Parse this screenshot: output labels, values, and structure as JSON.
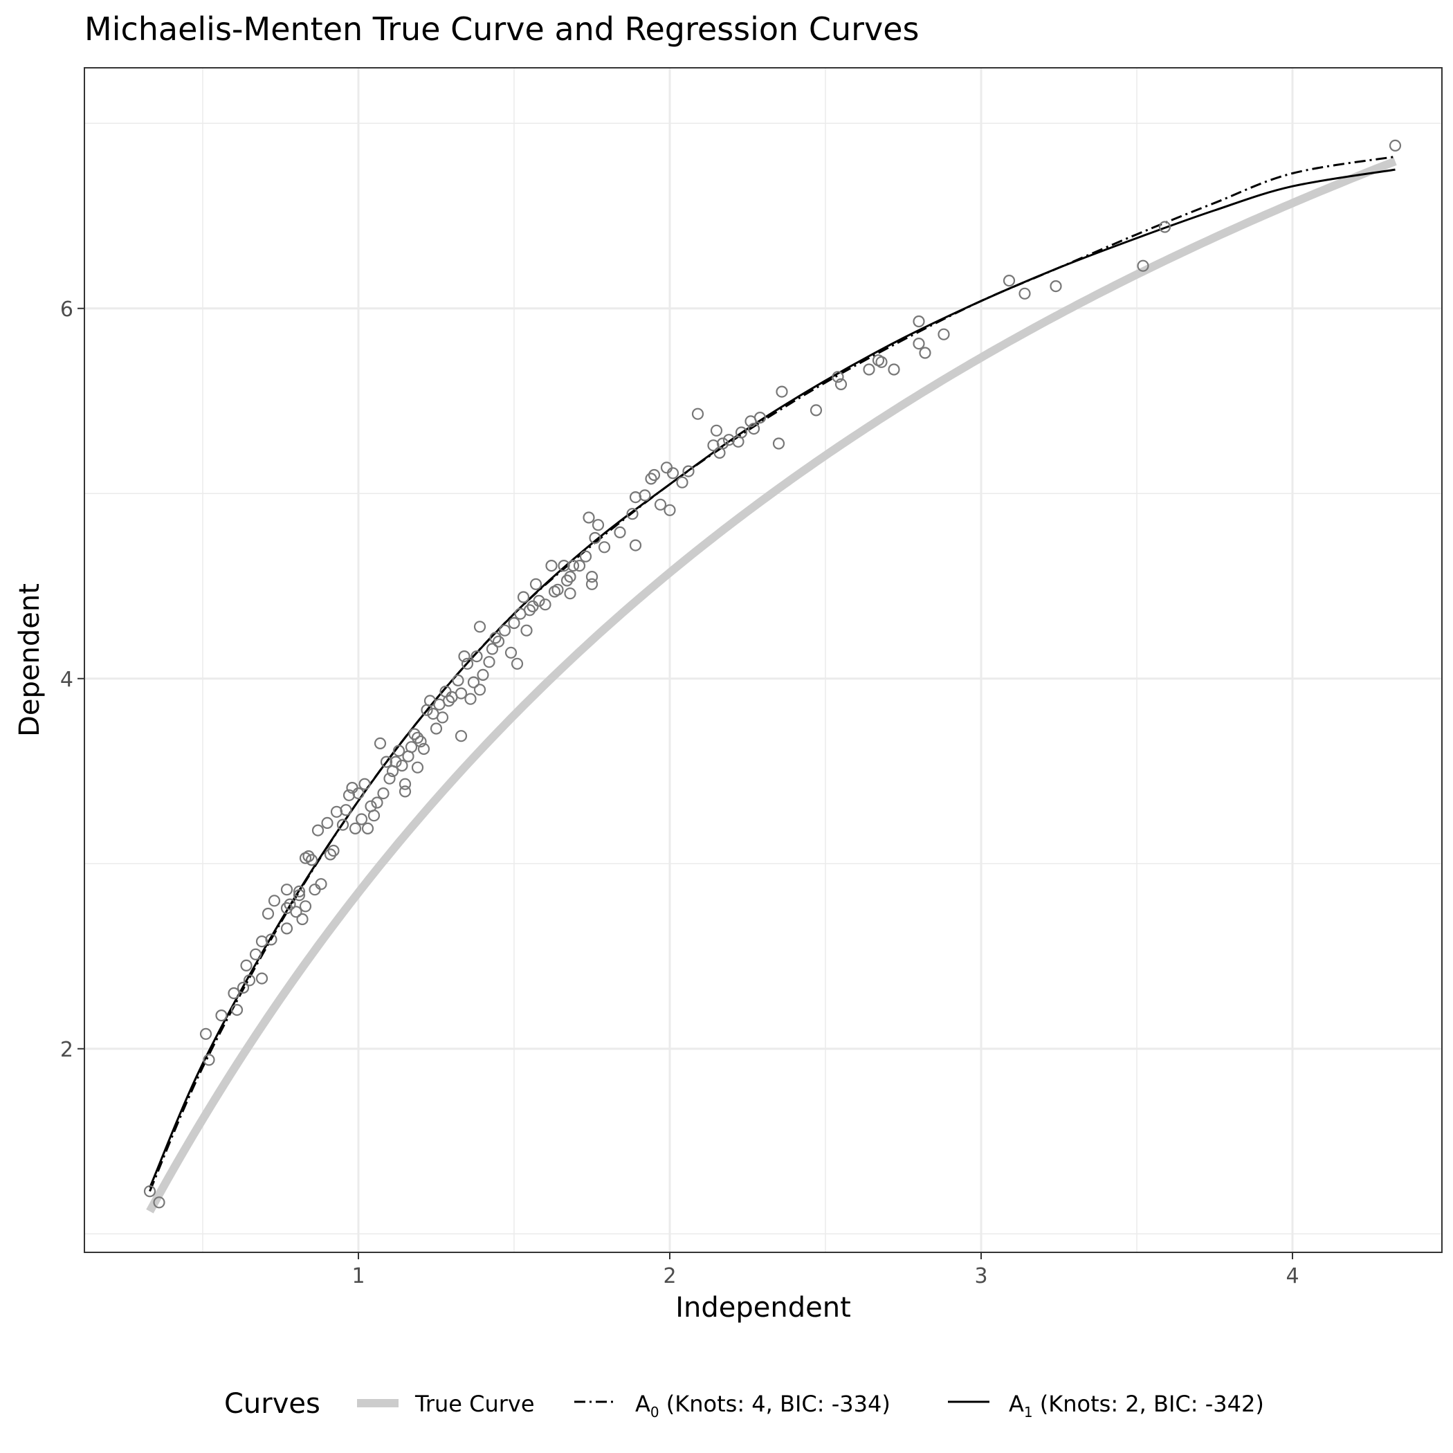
{
  "chart_data": {
    "type": "scatter",
    "title": "Michaelis-Menten True Curve and Regression Curves",
    "xlabel": "Independent",
    "ylabel": "Dependent",
    "xlim": [
      0.12,
      4.48
    ],
    "ylim": [
      0.9,
      7.3
    ],
    "x_ticks": [
      1,
      2,
      3,
      4
    ],
    "x_tick_labels": [
      "1",
      "2",
      "3",
      "4"
    ],
    "y_ticks": [
      2,
      4,
      6
    ],
    "y_tick_labels": [
      "2",
      "4",
      "6"
    ],
    "grid": true,
    "legend": {
      "position": "bottom",
      "title": "Curves",
      "entries": [
        {
          "label": "True Curve",
          "style": "thick-gray",
          "color": "#cccccc"
        },
        {
          "label_base": "A",
          "label_sub": "0",
          "label_rest": " (Knots: 4, BIC: -334)",
          "style": "dashdot",
          "color": "#000000"
        },
        {
          "label_base": "A",
          "label_sub": "1",
          "label_rest": " (Knots: 2, BIC: -342)",
          "style": "solid",
          "color": "#000000"
        }
      ]
    },
    "colors": {
      "points": "#777777",
      "true_curve": "#cccccc",
      "fit": "#000000",
      "grid": "#ebebeb",
      "panel_border": "#333333"
    },
    "true_curve": {
      "vmax": 11.66,
      "km": 3.1
    },
    "series": [
      {
        "name": "True Curve",
        "x": [
          0.33,
          0.5,
          0.75,
          1.0,
          1.25,
          1.5,
          1.75,
          2.0,
          2.25,
          2.5,
          2.75,
          3.0,
          3.25,
          3.5,
          3.75,
          4.0,
          4.33
        ],
        "y": [
          1.4,
          1.95,
          2.7,
          3.34,
          3.9,
          4.36,
          4.75,
          5.08,
          5.38,
          5.64,
          5.85,
          6.04,
          6.23,
          6.42,
          6.61,
          6.8,
          6.88
        ]
      },
      {
        "name": "A0 (Knots: 4, BIC: -334)",
        "x": [
          0.33,
          0.5,
          0.75,
          1.0,
          1.25,
          1.5,
          1.75,
          2.0,
          2.25,
          2.5,
          2.75,
          3.0,
          3.25,
          3.5,
          3.75,
          4.0,
          4.33
        ],
        "y": [
          1.23,
          1.9,
          2.68,
          3.34,
          3.89,
          4.35,
          4.72,
          5.05,
          5.34,
          5.6,
          5.83,
          6.04,
          6.22,
          6.4,
          6.57,
          6.73,
          6.82
        ]
      },
      {
        "name": "A1 (Knots: 2, BIC: -342)",
        "x": [
          0.33,
          0.5,
          0.75,
          1.0,
          1.25,
          1.5,
          1.75,
          2.0,
          2.25,
          2.5,
          2.75,
          3.0,
          3.25,
          3.5,
          3.75,
          4.0,
          4.33
        ],
        "y": [
          1.25,
          1.92,
          2.69,
          3.34,
          3.89,
          4.35,
          4.73,
          5.05,
          5.35,
          5.61,
          5.84,
          6.04,
          6.22,
          6.38,
          6.53,
          6.66,
          6.75
        ]
      }
    ],
    "points": [
      [
        0.33,
        1.23
      ],
      [
        0.36,
        1.17
      ],
      [
        0.51,
        2.08
      ],
      [
        0.52,
        1.94
      ],
      [
        0.56,
        2.18
      ],
      [
        0.6,
        2.3
      ],
      [
        0.61,
        2.21
      ],
      [
        0.63,
        2.33
      ],
      [
        0.64,
        2.45
      ],
      [
        0.65,
        2.37
      ],
      [
        0.67,
        2.51
      ],
      [
        0.69,
        2.38
      ],
      [
        0.69,
        2.58
      ],
      [
        0.71,
        2.73
      ],
      [
        0.72,
        2.59
      ],
      [
        0.73,
        2.8
      ],
      [
        0.77,
        2.65
      ],
      [
        0.77,
        2.86
      ],
      [
        0.77,
        2.76
      ],
      [
        0.78,
        2.78
      ],
      [
        0.8,
        2.74
      ],
      [
        0.81,
        2.85
      ],
      [
        0.81,
        2.83
      ],
      [
        0.82,
        2.7
      ],
      [
        0.83,
        2.77
      ],
      [
        0.83,
        3.03
      ],
      [
        0.84,
        3.04
      ],
      [
        0.85,
        3.02
      ],
      [
        0.86,
        2.86
      ],
      [
        0.87,
        3.18
      ],
      [
        0.88,
        2.89
      ],
      [
        0.9,
        3.22
      ],
      [
        0.91,
        3.05
      ],
      [
        0.92,
        3.07
      ],
      [
        0.93,
        3.28
      ],
      [
        0.95,
        3.21
      ],
      [
        0.96,
        3.29
      ],
      [
        0.97,
        3.37
      ],
      [
        0.98,
        3.41
      ],
      [
        0.99,
        3.19
      ],
      [
        1.0,
        3.38
      ],
      [
        1.01,
        3.24
      ],
      [
        1.02,
        3.43
      ],
      [
        1.03,
        3.19
      ],
      [
        1.04,
        3.31
      ],
      [
        1.05,
        3.26
      ],
      [
        1.06,
        3.33
      ],
      [
        1.07,
        3.65
      ],
      [
        1.08,
        3.38
      ],
      [
        1.09,
        3.55
      ],
      [
        1.1,
        3.46
      ],
      [
        1.11,
        3.5
      ],
      [
        1.12,
        3.55
      ],
      [
        1.13,
        3.61
      ],
      [
        1.14,
        3.53
      ],
      [
        1.15,
        3.39
      ],
      [
        1.15,
        3.43
      ],
      [
        1.16,
        3.58
      ],
      [
        1.17,
        3.63
      ],
      [
        1.18,
        3.7
      ],
      [
        1.19,
        3.52
      ],
      [
        1.19,
        3.68
      ],
      [
        1.2,
        3.66
      ],
      [
        1.21,
        3.62
      ],
      [
        1.22,
        3.83
      ],
      [
        1.23,
        3.88
      ],
      [
        1.24,
        3.81
      ],
      [
        1.25,
        3.73
      ],
      [
        1.26,
        3.86
      ],
      [
        1.27,
        3.79
      ],
      [
        1.28,
        3.93
      ],
      [
        1.29,
        3.88
      ],
      [
        1.3,
        3.9
      ],
      [
        1.32,
        3.99
      ],
      [
        1.33,
        3.92
      ],
      [
        1.33,
        3.69
      ],
      [
        1.34,
        4.12
      ],
      [
        1.35,
        4.08
      ],
      [
        1.36,
        3.89
      ],
      [
        1.37,
        3.98
      ],
      [
        1.38,
        4.12
      ],
      [
        1.39,
        4.28
      ],
      [
        1.39,
        3.94
      ],
      [
        1.4,
        4.02
      ],
      [
        1.42,
        4.09
      ],
      [
        1.43,
        4.16
      ],
      [
        1.44,
        4.22
      ],
      [
        1.45,
        4.2
      ],
      [
        1.47,
        4.26
      ],
      [
        1.49,
        4.14
      ],
      [
        1.5,
        4.3
      ],
      [
        1.51,
        4.08
      ],
      [
        1.52,
        4.35
      ],
      [
        1.53,
        4.44
      ],
      [
        1.54,
        4.26
      ],
      [
        1.55,
        4.37
      ],
      [
        1.56,
        4.39
      ],
      [
        1.57,
        4.51
      ],
      [
        1.58,
        4.42
      ],
      [
        1.6,
        4.4
      ],
      [
        1.62,
        4.61
      ],
      [
        1.63,
        4.47
      ],
      [
        1.64,
        4.48
      ],
      [
        1.66,
        4.61
      ],
      [
        1.67,
        4.53
      ],
      [
        1.68,
        4.55
      ],
      [
        1.68,
        4.46
      ],
      [
        1.69,
        4.61
      ],
      [
        1.71,
        4.61
      ],
      [
        1.73,
        4.66
      ],
      [
        1.74,
        4.87
      ],
      [
        1.75,
        4.51
      ],
      [
        1.75,
        4.55
      ],
      [
        1.76,
        4.76
      ],
      [
        1.77,
        4.83
      ],
      [
        1.79,
        4.71
      ],
      [
        1.84,
        4.79
      ],
      [
        1.88,
        4.89
      ],
      [
        1.89,
        4.98
      ],
      [
        1.89,
        4.72
      ],
      [
        1.92,
        4.99
      ],
      [
        1.94,
        5.08
      ],
      [
        1.95,
        5.1
      ],
      [
        1.97,
        4.94
      ],
      [
        1.99,
        5.14
      ],
      [
        2.0,
        4.91
      ],
      [
        2.01,
        5.11
      ],
      [
        2.04,
        5.06
      ],
      [
        2.06,
        5.12
      ],
      [
        2.09,
        5.43
      ],
      [
        2.14,
        5.26
      ],
      [
        2.15,
        5.34
      ],
      [
        2.16,
        5.22
      ],
      [
        2.17,
        5.27
      ],
      [
        2.19,
        5.29
      ],
      [
        2.22,
        5.28
      ],
      [
        2.23,
        5.33
      ],
      [
        2.26,
        5.39
      ],
      [
        2.27,
        5.35
      ],
      [
        2.29,
        5.41
      ],
      [
        2.35,
        5.27
      ],
      [
        2.36,
        5.55
      ],
      [
        2.47,
        5.45
      ],
      [
        2.54,
        5.63
      ],
      [
        2.55,
        5.59
      ],
      [
        2.64,
        5.67
      ],
      [
        2.67,
        5.72
      ],
      [
        2.68,
        5.71
      ],
      [
        2.72,
        5.67
      ],
      [
        2.8,
        5.93
      ],
      [
        2.8,
        5.81
      ],
      [
        2.82,
        5.76
      ],
      [
        2.88,
        5.86
      ],
      [
        3.09,
        6.15
      ],
      [
        3.14,
        6.08
      ],
      [
        3.24,
        6.12
      ],
      [
        3.52,
        6.23
      ],
      [
        3.59,
        6.44
      ],
      [
        4.33,
        6.88
      ]
    ]
  }
}
